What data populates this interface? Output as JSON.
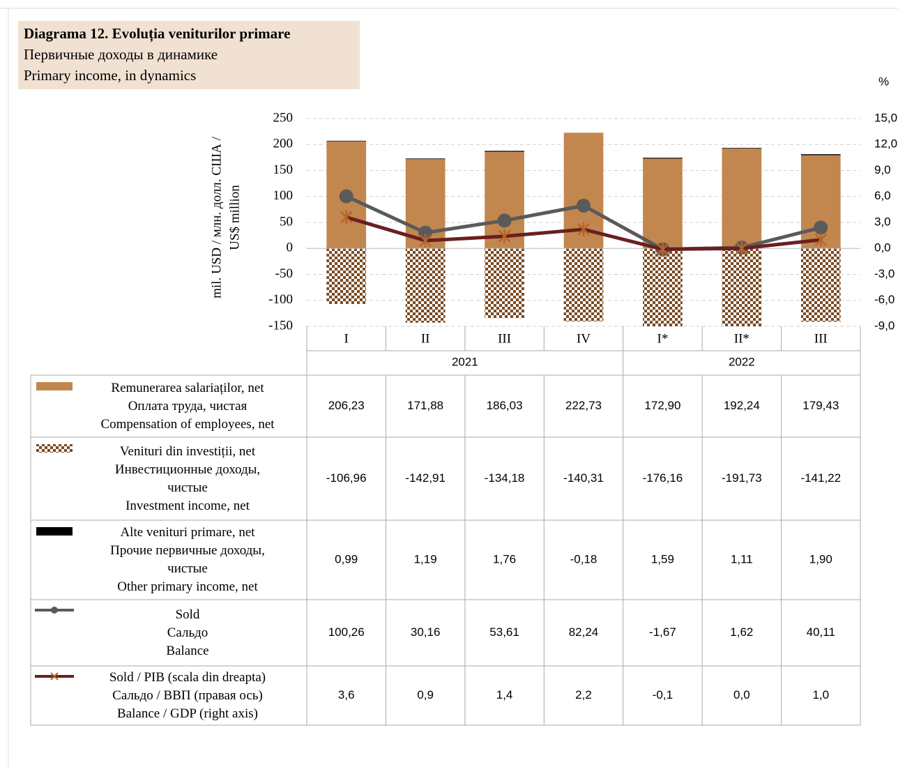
{
  "chart_data": {
    "type": "bar",
    "title": "Diagrama 12. Evoluția veniturilor primare",
    "subtitle": [
      "Первичные доходы в динамике",
      "Primary income, in dynamics"
    ],
    "y_label": [
      "mil. USD / млн. долл. США /",
      "US$ million"
    ],
    "y2_label": "%",
    "categories": [
      "I",
      "II",
      "III",
      "IV",
      "I*",
      "II*",
      "III"
    ],
    "groups": [
      {
        "name": "2021",
        "span": 4
      },
      {
        "name": "2022",
        "span": 3
      }
    ],
    "ylim": [
      -150,
      250
    ],
    "yticks": [
      -150,
      -100,
      -50,
      0,
      50,
      100,
      150,
      200,
      250
    ],
    "y2lim": [
      -9,
      15
    ],
    "y2ticks": [
      {
        "value": -9,
        "label": "-9,0"
      },
      {
        "value": -6,
        "label": "-6,0"
      },
      {
        "value": -3,
        "label": "-3,0"
      },
      {
        "value": 0,
        "label": "0,0"
      },
      {
        "value": 3,
        "label": "3,0"
      },
      {
        "value": 6,
        "label": "6,0"
      },
      {
        "value": 9,
        "label": "9,0"
      },
      {
        "value": 12,
        "label": "12,0"
      },
      {
        "value": 15,
        "label": "15,0"
      }
    ],
    "grid": true,
    "series": [
      {
        "name": [
          "Remunerarea salariaților, net",
          "Оплата труда, чистая",
          "Compensation of employees, net"
        ],
        "type": "bar",
        "color": "#c2874f",
        "values": [
          206.23,
          171.88,
          186.03,
          222.73,
          172.9,
          192.24,
          179.43
        ],
        "value_labels": [
          "206,23",
          "171,88",
          "186,03",
          "222,73",
          "172,90",
          "192,24",
          "179,43"
        ]
      },
      {
        "name": [
          "Venituri din investiții, net",
          "Инвестиционные доходы, чистые",
          "Investment income, net"
        ],
        "type": "bar",
        "color": "#7a4a22",
        "pattern": "checker",
        "values": [
          -106.96,
          -142.91,
          -134.18,
          -140.31,
          -176.16,
          -191.73,
          -141.22
        ],
        "value_labels": [
          "-106,96",
          "-142,91",
          "-134,18",
          "-140,31",
          "-176,16",
          "-191,73",
          "-141,22"
        ]
      },
      {
        "name": [
          "Alte venituri primare, net",
          "Прочие первичные доходы, чистые",
          "Other primary income, net"
        ],
        "type": "bar",
        "color": "#000000",
        "values": [
          0.99,
          1.19,
          1.76,
          -0.18,
          1.59,
          1.11,
          1.9
        ],
        "value_labels": [
          "0,99",
          "1,19",
          "1,76",
          "-0,18",
          "1,59",
          "1,11",
          "1,90"
        ]
      },
      {
        "name": [
          "Sold",
          "Сальдо",
          "Balance"
        ],
        "type": "line",
        "color": "#5a5a5a",
        "marker": "circle",
        "values": [
          100.26,
          30.16,
          53.61,
          82.24,
          -1.67,
          1.62,
          40.11
        ],
        "value_labels": [
          "100,26",
          "30,16",
          "53,61",
          "82,24",
          "-1,67",
          "1,62",
          "40,11"
        ]
      },
      {
        "name": [
          "Sold / PIB (scala din dreapta)",
          "Сальдо / ВВП (правая ось)",
          "Balance / GDP (right axis)"
        ],
        "type": "line",
        "color": "#6b1f1f",
        "marker": "star",
        "axis": "y2",
        "values": [
          3.6,
          0.9,
          1.4,
          2.2,
          -0.1,
          0.0,
          1.0
        ],
        "value_labels": [
          "3,6",
          "0,9",
          "1,4",
          "2,2",
          "-0,1",
          "0,0",
          "1,0"
        ]
      }
    ]
  }
}
